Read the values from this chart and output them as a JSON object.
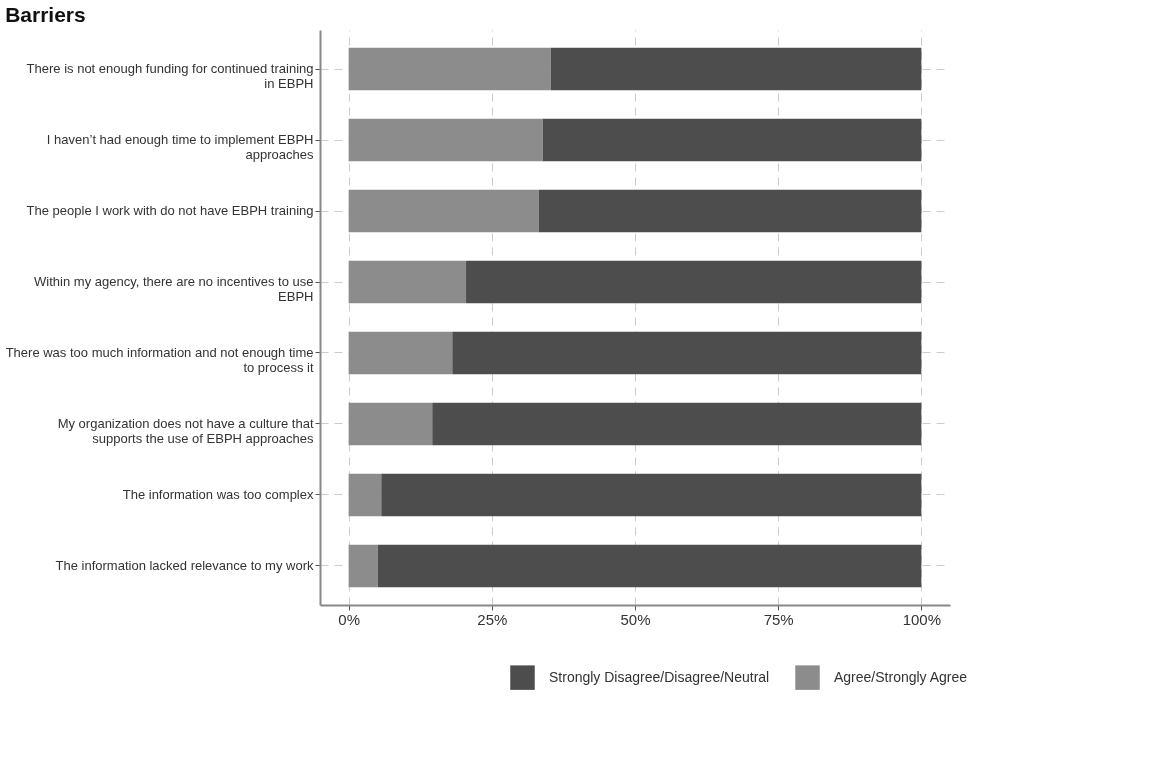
{
  "chart_data": {
    "type": "bar",
    "orientation": "horizontal",
    "stacked": true,
    "title": "Barriers",
    "categories": [
      "There is not enough funding for continued training in EBPH",
      "I haven’t had enough time to implement EBPH approaches",
      "The people I work with do not have EBPH training",
      "Within my agency, there are no incentives to use EBPH",
      "There was too much information and not enough time to process it",
      "My organization does not have a culture that supports the use of EBPH approaches",
      "The information was too complex",
      "The information lacked relevance to my work"
    ],
    "series": [
      {
        "name": "Agree/Strongly Agree",
        "color": "#8c8c8c",
        "values": [
          35.3,
          33.9,
          33.2,
          20.5,
          18.1,
          14.6,
          5.7,
          5.1
        ]
      },
      {
        "name": "Strongly Disagree/Disagree/Neutral",
        "color": "#4d4d4d",
        "values": [
          64.7,
          66.1,
          66.8,
          79.5,
          81.9,
          85.4,
          94.3,
          94.9
        ]
      }
    ],
    "xlim": [
      -5,
      105
    ],
    "xticks": [
      {
        "value": 0,
        "label": "0%"
      },
      {
        "value": 25,
        "label": "25%"
      },
      {
        "value": 50,
        "label": "50%"
      },
      {
        "value": 75,
        "label": "75%"
      },
      {
        "value": 100,
        "label": "100%"
      }
    ],
    "grid": true,
    "legend": "bottom right"
  }
}
